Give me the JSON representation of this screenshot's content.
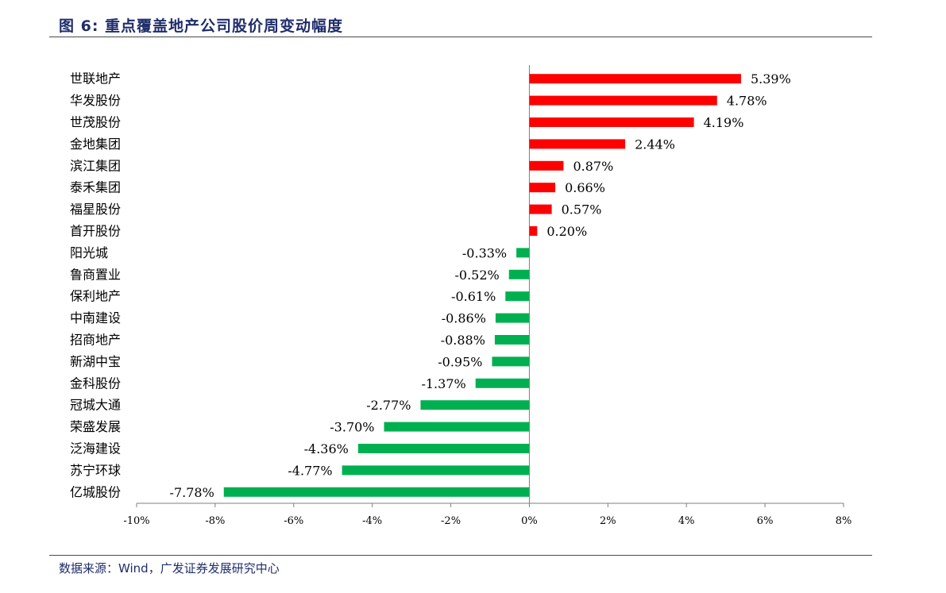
{
  "figure": {
    "title": "图 6:  重点覆盖地产公司股价周变动幅度",
    "source": "数据来源：Wind，广发证券发展研究中心"
  },
  "chart_data": {
    "type": "bar",
    "orientation": "horizontal",
    "categories": [
      "世联地产",
      "华发股份",
      "世茂股份",
      "金地集团",
      "滨江集团",
      "泰禾集团",
      "福星股份",
      "首开股份",
      "阳光城",
      "鲁商置业",
      "保利地产",
      "中南建设",
      "招商地产",
      "新湖中宝",
      "金科股份",
      "冠城大通",
      "荣盛发展",
      "泛海建设",
      "苏宁环球",
      "亿城股份"
    ],
    "values": [
      5.39,
      4.78,
      4.19,
      2.44,
      0.87,
      0.66,
      0.57,
      0.2,
      -0.33,
      -0.52,
      -0.61,
      -0.86,
      -0.88,
      -0.95,
      -1.37,
      -2.77,
      -3.7,
      -4.36,
      -4.77,
      -7.78
    ],
    "data_labels": [
      "5.39%",
      "4.78%",
      "4.19%",
      "2.44%",
      "0.87%",
      "0.66%",
      "0.57%",
      "0.20%",
      "-0.33%",
      "-0.52%",
      "-0.61%",
      "-0.86%",
      "-0.88%",
      "-0.95%",
      "-1.37%",
      "-2.77%",
      "-3.70%",
      "-4.36%",
      "-4.77%",
      "-7.78%"
    ],
    "xlim": [
      -10,
      8
    ],
    "x_ticks": [
      -10,
      -8,
      -6,
      -4,
      -2,
      0,
      2,
      4,
      6,
      8
    ],
    "x_tick_labels": [
      "-10%",
      "-8%",
      "-6%",
      "-4%",
      "-2%",
      "0%",
      "2%",
      "4%",
      "6%",
      "8%"
    ],
    "xlabel": "",
    "ylabel": "",
    "grid": false,
    "legend": "none",
    "colors": {
      "positive": "#ff0000",
      "negative": "#00b050",
      "axis": "#7f7f7f"
    }
  }
}
